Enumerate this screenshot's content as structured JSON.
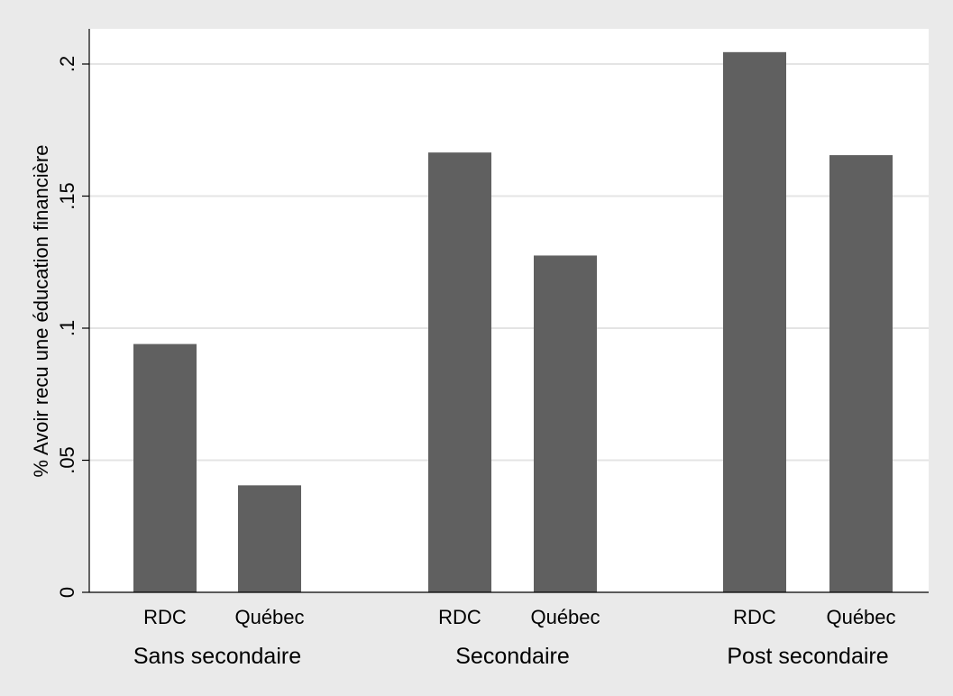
{
  "chart_data": {
    "type": "bar",
    "ylabel": "% Avoir recu une éducation financière",
    "ylim": [
      0,
      0.22
    ],
    "yticks": [
      {
        "value": 0,
        "label": "0"
      },
      {
        "value": 0.05,
        "label": ".05"
      },
      {
        "value": 0.1,
        "label": ".1"
      },
      {
        "value": 0.15,
        "label": ".15"
      },
      {
        "value": 0.2,
        "label": ".2"
      }
    ],
    "grid": true,
    "bar_color": "#606060",
    "groups": [
      {
        "name": "Sans secondaire",
        "bars": [
          {
            "category": "RDC",
            "value": 0.094
          },
          {
            "category": "Québec",
            "value": 0.0405
          }
        ]
      },
      {
        "name": "Secondaire",
        "bars": [
          {
            "category": "RDC",
            "value": 0.1665
          },
          {
            "category": "Québec",
            "value": 0.1275
          }
        ]
      },
      {
        "name": "Post secondaire",
        "bars": [
          {
            "category": "RDC",
            "value": 0.2045
          },
          {
            "category": "Québec",
            "value": 0.1655
          }
        ]
      }
    ]
  }
}
